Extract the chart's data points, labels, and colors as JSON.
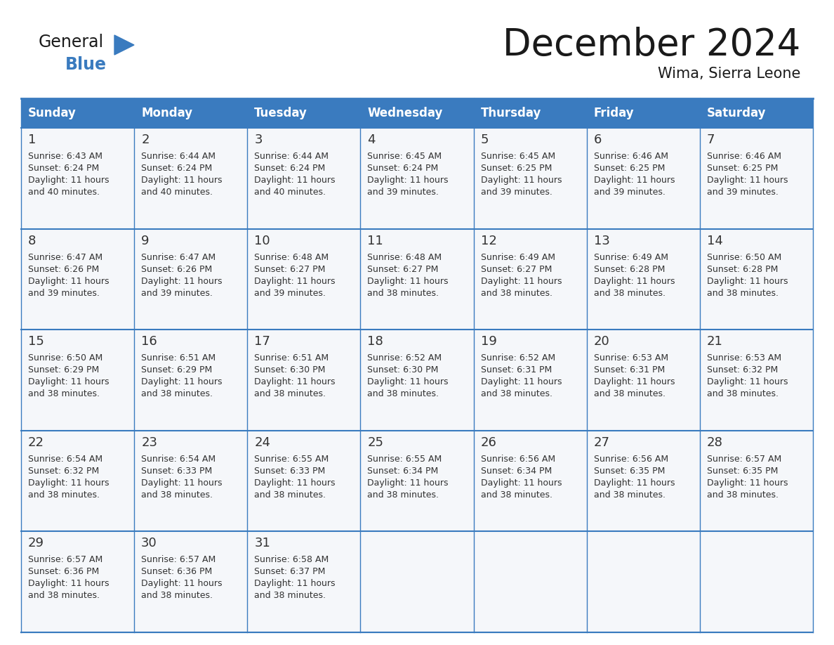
{
  "title": "December 2024",
  "subtitle": "Wima, Sierra Leone",
  "days_of_week": [
    "Sunday",
    "Monday",
    "Tuesday",
    "Wednesday",
    "Thursday",
    "Friday",
    "Saturday"
  ],
  "header_bg": "#3a7bbf",
  "header_text_color": "#ffffff",
  "cell_bg": "#f5f7fa",
  "border_color": "#3a7bbf",
  "text_color": "#333333",
  "title_fontsize": 38,
  "subtitle_fontsize": 15,
  "header_fontsize": 12,
  "day_num_fontsize": 13,
  "cell_text_fontsize": 9,
  "calendar_data": [
    [
      {
        "day": 1,
        "sunrise": "6:43 AM",
        "sunset": "6:24 PM",
        "daylight": "11 hours and 40 minutes."
      },
      {
        "day": 2,
        "sunrise": "6:44 AM",
        "sunset": "6:24 PM",
        "daylight": "11 hours and 40 minutes."
      },
      {
        "day": 3,
        "sunrise": "6:44 AM",
        "sunset": "6:24 PM",
        "daylight": "11 hours and 40 minutes."
      },
      {
        "day": 4,
        "sunrise": "6:45 AM",
        "sunset": "6:24 PM",
        "daylight": "11 hours and 39 minutes."
      },
      {
        "day": 5,
        "sunrise": "6:45 AM",
        "sunset": "6:25 PM",
        "daylight": "11 hours and 39 minutes."
      },
      {
        "day": 6,
        "sunrise": "6:46 AM",
        "sunset": "6:25 PM",
        "daylight": "11 hours and 39 minutes."
      },
      {
        "day": 7,
        "sunrise": "6:46 AM",
        "sunset": "6:25 PM",
        "daylight": "11 hours and 39 minutes."
      }
    ],
    [
      {
        "day": 8,
        "sunrise": "6:47 AM",
        "sunset": "6:26 PM",
        "daylight": "11 hours and 39 minutes."
      },
      {
        "day": 9,
        "sunrise": "6:47 AM",
        "sunset": "6:26 PM",
        "daylight": "11 hours and 39 minutes."
      },
      {
        "day": 10,
        "sunrise": "6:48 AM",
        "sunset": "6:27 PM",
        "daylight": "11 hours and 39 minutes."
      },
      {
        "day": 11,
        "sunrise": "6:48 AM",
        "sunset": "6:27 PM",
        "daylight": "11 hours and 38 minutes."
      },
      {
        "day": 12,
        "sunrise": "6:49 AM",
        "sunset": "6:27 PM",
        "daylight": "11 hours and 38 minutes."
      },
      {
        "day": 13,
        "sunrise": "6:49 AM",
        "sunset": "6:28 PM",
        "daylight": "11 hours and 38 minutes."
      },
      {
        "day": 14,
        "sunrise": "6:50 AM",
        "sunset": "6:28 PM",
        "daylight": "11 hours and 38 minutes."
      }
    ],
    [
      {
        "day": 15,
        "sunrise": "6:50 AM",
        "sunset": "6:29 PM",
        "daylight": "11 hours and 38 minutes."
      },
      {
        "day": 16,
        "sunrise": "6:51 AM",
        "sunset": "6:29 PM",
        "daylight": "11 hours and 38 minutes."
      },
      {
        "day": 17,
        "sunrise": "6:51 AM",
        "sunset": "6:30 PM",
        "daylight": "11 hours and 38 minutes."
      },
      {
        "day": 18,
        "sunrise": "6:52 AM",
        "sunset": "6:30 PM",
        "daylight": "11 hours and 38 minutes."
      },
      {
        "day": 19,
        "sunrise": "6:52 AM",
        "sunset": "6:31 PM",
        "daylight": "11 hours and 38 minutes."
      },
      {
        "day": 20,
        "sunrise": "6:53 AM",
        "sunset": "6:31 PM",
        "daylight": "11 hours and 38 minutes."
      },
      {
        "day": 21,
        "sunrise": "6:53 AM",
        "sunset": "6:32 PM",
        "daylight": "11 hours and 38 minutes."
      }
    ],
    [
      {
        "day": 22,
        "sunrise": "6:54 AM",
        "sunset": "6:32 PM",
        "daylight": "11 hours and 38 minutes."
      },
      {
        "day": 23,
        "sunrise": "6:54 AM",
        "sunset": "6:33 PM",
        "daylight": "11 hours and 38 minutes."
      },
      {
        "day": 24,
        "sunrise": "6:55 AM",
        "sunset": "6:33 PM",
        "daylight": "11 hours and 38 minutes."
      },
      {
        "day": 25,
        "sunrise": "6:55 AM",
        "sunset": "6:34 PM",
        "daylight": "11 hours and 38 minutes."
      },
      {
        "day": 26,
        "sunrise": "6:56 AM",
        "sunset": "6:34 PM",
        "daylight": "11 hours and 38 minutes."
      },
      {
        "day": 27,
        "sunrise": "6:56 AM",
        "sunset": "6:35 PM",
        "daylight": "11 hours and 38 minutes."
      },
      {
        "day": 28,
        "sunrise": "6:57 AM",
        "sunset": "6:35 PM",
        "daylight": "11 hours and 38 minutes."
      }
    ],
    [
      {
        "day": 29,
        "sunrise": "6:57 AM",
        "sunset": "6:36 PM",
        "daylight": "11 hours and 38 minutes."
      },
      {
        "day": 30,
        "sunrise": "6:57 AM",
        "sunset": "6:36 PM",
        "daylight": "11 hours and 38 minutes."
      },
      {
        "day": 31,
        "sunrise": "6:58 AM",
        "sunset": "6:37 PM",
        "daylight": "11 hours and 38 minutes."
      },
      null,
      null,
      null,
      null
    ]
  ]
}
